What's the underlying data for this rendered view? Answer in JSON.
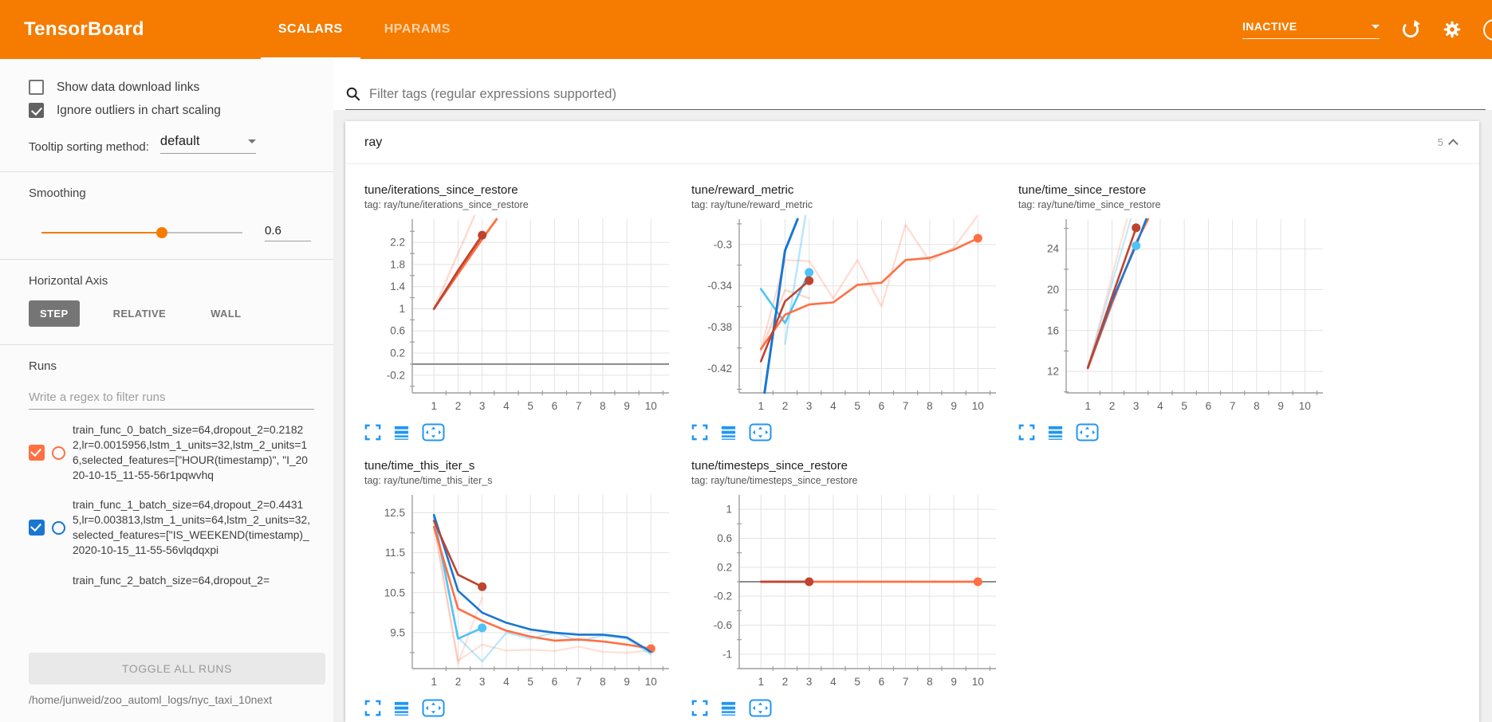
{
  "header": {
    "title": "TensorBoard",
    "tabs": [
      {
        "label": "SCALARS",
        "active": true
      },
      {
        "label": "HPARAMS",
        "active": false
      }
    ],
    "status": "INACTIVE"
  },
  "sidebar": {
    "checkboxes": [
      {
        "label": "Show data download links",
        "checked": false
      },
      {
        "label": "Ignore outliers in chart scaling",
        "checked": true
      }
    ],
    "tooltip_sorting": {
      "label": "Tooltip sorting method:",
      "value": "default"
    },
    "smoothing": {
      "label": "Smoothing",
      "value": "0.6",
      "percent": 60
    },
    "horizontal_axis": {
      "label": "Horizontal Axis",
      "options": [
        {
          "label": "STEP",
          "selected": true
        },
        {
          "label": "RELATIVE",
          "selected": false
        },
        {
          "label": "WALL",
          "selected": false
        }
      ]
    },
    "runs": {
      "label": "Runs",
      "filter_placeholder": "Write a regex to filter runs",
      "items": [
        {
          "text": "train_func_0_batch_size=64,dropout_2=0.21822,lr=0.0015956,lstm_1_units=32,lstm_2_units=16,selected_features=[\"HOUR(timestamp)\", \"I_2020-10-15_11-55-56r1pqwvhq",
          "checked": true,
          "color": "#ff7043"
        },
        {
          "text": "train_func_1_batch_size=64,dropout_2=0.44315,lr=0.003813,lstm_1_units=64,lstm_2_units=32,selected_features=[\"IS_WEEKEND(timestamp)_2020-10-15_11-55-56vlqdqxpi",
          "checked": true,
          "color": "#1976d2"
        },
        {
          "text": "train_func_2_batch_size=64,dropout_2=",
          "checked": null,
          "color": null
        }
      ],
      "toggle_button": "TOGGLE ALL RUNS",
      "log_path": "/home/junweid/zoo_automl_logs/nyc_taxi_10next"
    }
  },
  "main": {
    "filter_placeholder": "Filter tags (regular expressions supported)",
    "section": {
      "name": "ray",
      "count": "5"
    }
  },
  "colors": {
    "accent": "#f57c00",
    "run0": "#ff7043",
    "run1": "#1976d2",
    "run2": "#bf4430",
    "run3": "#4fc3f7",
    "icon_blue": "#2196f3"
  },
  "chart_data": [
    {
      "type": "line",
      "title": "tune/iterations_since_restore",
      "tag": "tag: ray/tune/iterations_since_restore",
      "xlim": [
        0.1,
        10.75
      ],
      "ylim": [
        -0.52,
        2.62
      ],
      "xticks": [
        1,
        2,
        3,
        4,
        5,
        6,
        7,
        8,
        9,
        10
      ],
      "yticks": [
        -0.2,
        0.2,
        0.6,
        1,
        1.4,
        1.8,
        2.2
      ],
      "zero_line": true,
      "series": [
        {
          "color": "#ff7043",
          "o": 0.25,
          "w": 2.5,
          "points": [
            [
              1,
              1
            ],
            [
              2,
              2
            ],
            [
              3,
              3
            ]
          ]
        },
        {
          "color": "#ff7043",
          "w": 2.8,
          "points": [
            [
              1,
              1
            ],
            [
              2,
              1.63
            ],
            [
              3,
              2.26
            ],
            [
              3.6,
              2.62
            ]
          ]
        },
        {
          "color": "#bf4430",
          "w": 2.8,
          "dot": true,
          "points": [
            [
              1,
              1
            ],
            [
              2,
              1.69
            ],
            [
              3,
              2.33
            ]
          ]
        }
      ]
    },
    {
      "type": "line",
      "title": "tune/reward_metric",
      "tag": "tag: ray/tune/reward_metric",
      "xlim": [
        0.1,
        10.75
      ],
      "ylim": [
        -0.4435,
        -0.2755
      ],
      "xticks": [
        1,
        2,
        3,
        4,
        5,
        6,
        7,
        8,
        9,
        10
      ],
      "yticks": [
        -0.42,
        -0.38,
        -0.34,
        -0.3
      ],
      "zero_line": false,
      "series": [
        {
          "color": "#ff7043",
          "o": 0.25,
          "w": 2.2,
          "points": [
            [
              1,
              -0.401
            ],
            [
              2,
              -0.315
            ],
            [
              3,
              -0.316
            ],
            [
              4,
              -0.352
            ],
            [
              5,
              -0.315
            ],
            [
              6,
              -0.36
            ],
            [
              7,
              -0.281
            ],
            [
              8,
              -0.316
            ],
            [
              9,
              -0.303
            ],
            [
              10,
              -0.272
            ]
          ]
        },
        {
          "color": "#ff7043",
          "o": 0.3,
          "w": 2.2,
          "points": [
            [
              1,
              -0.403
            ],
            [
              2,
              -0.344
            ],
            [
              3,
              -0.352
            ]
          ]
        },
        {
          "color": "#4fc3f7",
          "o": 0.4,
          "w": 2.5,
          "points": [
            [
              2,
              -0.396
            ],
            [
              2.85,
              -0.272
            ]
          ]
        },
        {
          "color": "#4fc3f7",
          "w": 2.6,
          "dot": true,
          "points": [
            [
              1,
              -0.343
            ],
            [
              2,
              -0.376
            ],
            [
              3,
              -0.327
            ]
          ]
        },
        {
          "color": "#1976d2",
          "w": 3,
          "points": [
            [
              1.15,
              -0.4435
            ],
            [
              2,
              -0.306
            ],
            [
              2.52,
              -0.2755
            ]
          ]
        },
        {
          "color": "#ff7043",
          "w": 2.6,
          "dot": true,
          "points": [
            [
              1,
              -0.401
            ],
            [
              2,
              -0.368
            ],
            [
              3,
              -0.358
            ],
            [
              4,
              -0.356
            ],
            [
              5,
              -0.339
            ],
            [
              6,
              -0.337
            ],
            [
              7,
              -0.315
            ],
            [
              8,
              -0.313
            ],
            [
              9,
              -0.305
            ],
            [
              10,
              -0.294
            ]
          ]
        },
        {
          "color": "#bf4430",
          "w": 2.6,
          "dot": true,
          "points": [
            [
              1,
              -0.413
            ],
            [
              2,
              -0.355
            ],
            [
              3,
              -0.335
            ]
          ]
        }
      ]
    },
    {
      "type": "line",
      "title": "tune/time_since_restore",
      "tag": "tag: ray/tune/time_since_restore",
      "xlim": [
        0.1,
        10.75
      ],
      "ylim": [
        9.9,
        26.9
      ],
      "xticks": [
        1,
        2,
        3,
        4,
        5,
        6,
        7,
        8,
        9,
        10
      ],
      "yticks": [
        12,
        16,
        20,
        24
      ],
      "zero_line": false,
      "series": [
        {
          "color": "#ff7043",
          "o": 0.22,
          "w": 2.2,
          "points": [
            [
              1,
              12.3
            ],
            [
              2,
              21.3
            ],
            [
              2.62,
              26.9
            ]
          ]
        },
        {
          "color": "#4fc3f7",
          "o": 0.35,
          "w": 2.2,
          "points": [
            [
              1,
              12.4
            ],
            [
              2,
              20.6
            ],
            [
              2.78,
              26.9
            ]
          ]
        },
        {
          "color": "#ff7043",
          "w": 2.6,
          "points": [
            [
              1,
              12.3
            ],
            [
              2,
              18.6
            ],
            [
              3,
              24.6
            ],
            [
              3.5,
              26.9
            ]
          ]
        },
        {
          "color": "#1976d2",
          "w": 2.6,
          "points": [
            [
              1,
              12.4
            ],
            [
              2,
              18.9
            ],
            [
              3,
              24.35
            ],
            [
              3.42,
              26.9
            ]
          ]
        },
        {
          "color": "#4fc3f7",
          "w": 2.6,
          "dot": true,
          "points": [
            [
              3,
              24.3
            ]
          ]
        },
        {
          "color": "#bf4430",
          "w": 2.6,
          "dot": true,
          "points": [
            [
              1,
              12.35
            ],
            [
              2,
              19.3
            ],
            [
              3,
              26.05
            ]
          ]
        }
      ]
    },
    {
      "type": "line",
      "title": "tune/time_this_iter_s",
      "tag": "tag: ray/tune/time_this_iter_s",
      "xlim": [
        0.1,
        10.75
      ],
      "ylim": [
        8.6,
        12.95
      ],
      "xticks": [
        1,
        2,
        3,
        4,
        5,
        6,
        7,
        8,
        9,
        10
      ],
      "yticks": [
        9.5,
        10.5,
        11.5,
        12.5
      ],
      "zero_line": false,
      "series": [
        {
          "color": "#ff7043",
          "o": 0.22,
          "w": 2.2,
          "points": [
            [
              1,
              12.15
            ],
            [
              2,
              8.8
            ],
            [
              3,
              9.2
            ],
            [
              4,
              9.05
            ],
            [
              5,
              9.07
            ],
            [
              6,
              9.04
            ],
            [
              7,
              9.15
            ],
            [
              8,
              9.02
            ],
            [
              9,
              9.0
            ],
            [
              10,
              9.05
            ]
          ]
        },
        {
          "color": "#ff7043",
          "o": 0.2,
          "w": 2.2,
          "points": [
            [
              1,
              12.3
            ],
            [
              2,
              8.72
            ],
            [
              3,
              10.38
            ]
          ]
        },
        {
          "color": "#4fc3f7",
          "o": 0.4,
          "w": 2.2,
          "points": [
            [
              1,
              12.45
            ],
            [
              2,
              9.38
            ],
            [
              3,
              8.78
            ],
            [
              4,
              9.5
            ],
            [
              5,
              9.35
            ],
            [
              6,
              9.5
            ],
            [
              7,
              9.3
            ],
            [
              8,
              9.42
            ],
            [
              9,
              9.35
            ],
            [
              10,
              8.95
            ]
          ]
        },
        {
          "color": "#4fc3f7",
          "w": 2.6,
          "dot": true,
          "points": [
            [
              1,
              12.4
            ],
            [
              2,
              9.35
            ],
            [
              3,
              9.62
            ]
          ]
        },
        {
          "color": "#ff7043",
          "w": 2.6,
          "dot": true,
          "points": [
            [
              1,
              12.15
            ],
            [
              2,
              10.1
            ],
            [
              3,
              9.8
            ],
            [
              4,
              9.55
            ],
            [
              5,
              9.4
            ],
            [
              6,
              9.3
            ],
            [
              7,
              9.33
            ],
            [
              8,
              9.28
            ],
            [
              9,
              9.2
            ],
            [
              10,
              9.1
            ]
          ]
        },
        {
          "color": "#1976d2",
          "w": 2.6,
          "points": [
            [
              1,
              12.45
            ],
            [
              2,
              10.55
            ],
            [
              3,
              10.0
            ],
            [
              4,
              9.75
            ],
            [
              5,
              9.58
            ],
            [
              6,
              9.5
            ],
            [
              7,
              9.45
            ],
            [
              8,
              9.45
            ],
            [
              9,
              9.38
            ],
            [
              10,
              9.02
            ]
          ]
        },
        {
          "color": "#bf4430",
          "w": 2.6,
          "dot": true,
          "points": [
            [
              1,
              12.3
            ],
            [
              2,
              10.95
            ],
            [
              3,
              10.65
            ]
          ]
        }
      ]
    },
    {
      "type": "line",
      "title": "tune/timesteps_since_restore",
      "tag": "tag: ray/tune/timesteps_since_restore",
      "xlim": [
        0.1,
        10.75
      ],
      "ylim": [
        -1.2,
        1.2
      ],
      "xticks": [
        1,
        2,
        3,
        4,
        5,
        6,
        7,
        8,
        9,
        10
      ],
      "yticks": [
        -1,
        -0.6,
        -0.2,
        0.2,
        0.6,
        1
      ],
      "zero_line": true,
      "series": [
        {
          "color": "#ff7043",
          "w": 2.8,
          "dot": true,
          "points": [
            [
              1,
              0
            ],
            [
              10,
              0
            ]
          ]
        },
        {
          "color": "#bf4430",
          "w": 2.8,
          "dot": true,
          "points": [
            [
              1,
              0
            ],
            [
              3,
              0
            ]
          ]
        }
      ]
    }
  ]
}
